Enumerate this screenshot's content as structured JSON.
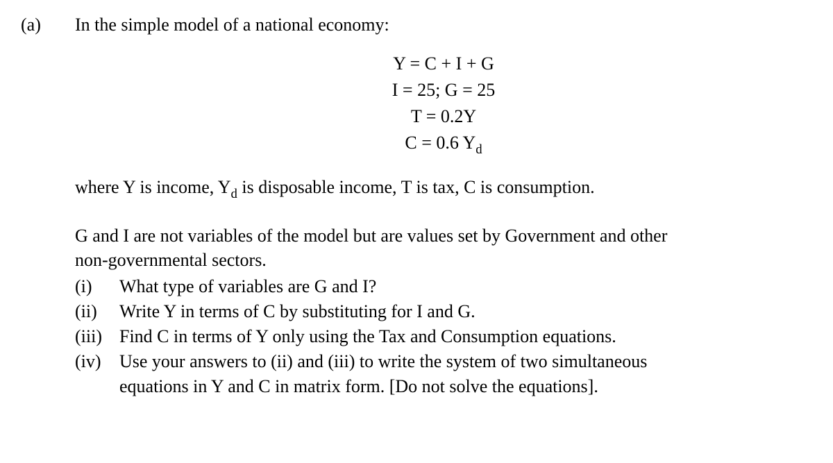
{
  "font": {
    "family": "Times New Roman",
    "base_size_pt": 20,
    "color": "#000000",
    "bg": "#ffffff"
  },
  "label": "(a)",
  "intro": "In the simple model of a national economy:",
  "equations": {
    "eq1": "Y = C + I + G",
    "eq2": "I = 25; G = 25",
    "eq3": "T = 0.2Y",
    "eq4_lhs": "C = 0.6 Y",
    "eq4_sub": "d"
  },
  "where_text_pre": "where Y is income, Y",
  "where_sub": "d",
  "where_text_post": " is disposable income, T is tax, C is consumption.",
  "para2_line1": "G and I are not variables of the model but are values set by Government and other",
  "para2_line2": "non-governmental sectors.",
  "items": {
    "i": {
      "label": "(i)",
      "text": "What type of variables are G and I?"
    },
    "ii": {
      "label": "(ii)",
      "text": "Write Y in terms of C by substituting for I and G."
    },
    "iii": {
      "label": "(iii)",
      "text": "Find C in terms of Y only using the Tax and Consumption equations."
    },
    "iv": {
      "label": "(iv)",
      "line1": "Use your answers to (ii) and (iii) to write the system of two simultaneous",
      "line2": "equations in Y and C in matrix form. [Do not solve the equations]."
    }
  }
}
